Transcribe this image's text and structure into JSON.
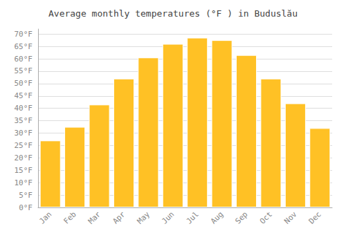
{
  "chart_data": {
    "type": "bar",
    "title": "Average monthly temperatures (°F ) in Buduslău",
    "categories": [
      "Jan",
      "Feb",
      "Mar",
      "Apr",
      "May",
      "Jun",
      "Jul",
      "Aug",
      "Sep",
      "Oct",
      "Nov",
      "Dec"
    ],
    "values": [
      27,
      32.5,
      41.5,
      52,
      60.5,
      66,
      68.5,
      67.5,
      61.5,
      52,
      42,
      32
    ],
    "color": "#FFC125",
    "ylim": [
      0,
      72
    ],
    "yticks": [
      {
        "value": 0,
        "label": "0°F"
      },
      {
        "value": 5,
        "label": "5°F"
      },
      {
        "value": 10,
        "label": "10°F"
      },
      {
        "value": 15,
        "label": "15°F"
      },
      {
        "value": 20,
        "label": "20°F"
      },
      {
        "value": 25,
        "label": "25°F"
      },
      {
        "value": 30,
        "label": "30°F"
      },
      {
        "value": 35,
        "label": "35°F"
      },
      {
        "value": 40,
        "label": "40°F"
      },
      {
        "value": 45,
        "label": "45°F"
      },
      {
        "value": 50,
        "label": "50°F"
      },
      {
        "value": 55,
        "label": "55°F"
      },
      {
        "value": 60,
        "label": "60°F"
      },
      {
        "value": 65,
        "label": "65°F"
      },
      {
        "value": 70,
        "label": "70°F"
      }
    ],
    "grid": true
  }
}
